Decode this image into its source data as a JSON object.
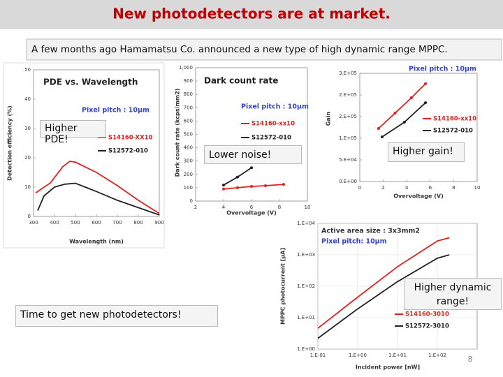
{
  "slide": {
    "title": "New photodetectors are at market.",
    "subtitle": "A few months ago Hamamatsu Co.  announced a new type of high dynamic range MPPC.",
    "callouts": [
      "Higher PDE!",
      "Lower noise!",
      "Higher gain!",
      "Higher dynamic range!"
    ],
    "bottom_note": "Time to get new photodetectors!",
    "page_number": "8"
  },
  "chart_data": [
    {
      "type": "line",
      "title": "PDE vs. Wavelength",
      "annotations": [
        "Pixel pitch : 10μm"
      ],
      "x_label": "Wavelength (nm)",
      "y_label": "Detection efficiency (%)",
      "xlim": [
        300,
        900
      ],
      "xticks": [
        300,
        400,
        500,
        600,
        700,
        800,
        900
      ],
      "ylim": [
        0,
        50
      ],
      "yticks": [
        0,
        10,
        20,
        30,
        40,
        50
      ],
      "markers": false,
      "grid": false,
      "series": [
        {
          "name": "S14160-XX10",
          "color": "#e02020",
          "x": [
            310,
            340,
            380,
            440,
            473,
            500,
            600,
            700,
            800,
            900
          ],
          "values": [
            8,
            9.5,
            11.4,
            17,
            18.8,
            18.5,
            15,
            10.5,
            5.5,
            1
          ]
        },
        {
          "name": "S12572-010",
          "color": "#222222",
          "x": [
            320,
            350,
            400,
            450,
            500,
            600,
            700,
            800,
            900
          ],
          "values": [
            2,
            7,
            10,
            11,
            11.3,
            8.5,
            5.5,
            3,
            0.5
          ]
        }
      ]
    },
    {
      "type": "line",
      "title": "Dark count rate",
      "annotations": [
        "Pixel pitch : 10μm"
      ],
      "x_label": "Overvoltage (V)",
      "y_label": "Dark count rate (kcps/mm2)",
      "xlim": [
        2,
        10
      ],
      "xticks": [
        2,
        4,
        6,
        8,
        10
      ],
      "ylim": [
        0,
        1000
      ],
      "yticks": [
        0,
        100,
        200,
        300,
        400,
        500,
        600,
        700,
        800,
        900,
        {
          "value": 1000,
          "label": "1,000"
        }
      ],
      "markers": true,
      "grid": false,
      "series": [
        {
          "name": "S14160-xx10",
          "color": "#e02020",
          "x": [
            4,
            5,
            6,
            7,
            8.3
          ],
          "values": [
            90,
            100,
            110,
            115,
            125
          ]
        },
        {
          "name": "S12572-010",
          "color": "#222222",
          "x": [
            4,
            5,
            6
          ],
          "values": [
            120,
            180,
            250
          ]
        }
      ]
    },
    {
      "type": "line",
      "annotations": [
        "Pixel pitch : 10μm"
      ],
      "x_label": "Overvoltage (V)",
      "y_label": "Gain",
      "xlim": [
        0,
        10
      ],
      "xticks": [
        0,
        2,
        4,
        6,
        8,
        10
      ],
      "ylim": [
        0,
        250000
      ],
      "yticks": [
        {
          "value": 0,
          "label": "0.E+00"
        },
        {
          "value": 50000,
          "label": "5.E+04"
        },
        {
          "value": 100000,
          "label": "1.E+05"
        },
        {
          "value": 150000,
          "label": "2.E+05"
        },
        {
          "value": 200000,
          "label": "2.E+05"
        },
        {
          "value": 250000,
          "label": "3.E+05"
        }
      ],
      "markers": true,
      "grid": false,
      "series": [
        {
          "name": "S14160-xx10",
          "color": "#e02020",
          "x": [
            1.6,
            3,
            4.4,
            5.6
          ],
          "values": [
            122600,
            158000,
            193500,
            226000
          ]
        },
        {
          "name": "S12572-010",
          "color": "#222222",
          "x": [
            1.9,
            3.8,
            5.6
          ],
          "values": [
            103000,
            137000,
            182000
          ]
        }
      ]
    },
    {
      "type": "line",
      "annotations": [
        "Active area size : 3x3mm2",
        "Pixel pitch: 10μm"
      ],
      "x_label": "Incident power [nW]",
      "y_label": "MPPC photocurrent [μA]",
      "xscale": "log",
      "yscale": "log",
      "xlim": [
        0.1,
        1000
      ],
      "xticks": [
        {
          "value": 0.1,
          "label": "1.E-01"
        },
        {
          "value": 1,
          "label": "1.E+00"
        },
        {
          "value": 10,
          "label": "1.E+01"
        },
        {
          "value": 100,
          "label": "1.E+02"
        }
      ],
      "ylim": [
        1,
        10000
      ],
      "yticks": [
        {
          "value": 1,
          "label": "1.E+00"
        },
        {
          "value": 10,
          "label": "1.E+01"
        },
        {
          "value": 100,
          "label": "1.E+02"
        },
        {
          "value": 1000,
          "label": "1.E+03"
        },
        {
          "value": 10000,
          "label": "1.E+04"
        }
      ],
      "markers": false,
      "grid": true,
      "series": [
        {
          "name": "S14160-3010",
          "color": "#e02020",
          "x": [
            0.1,
            1,
            10,
            100,
            200
          ],
          "values": [
            4.6,
            45,
            420,
            2750,
            3500
          ]
        },
        {
          "name": "S12572-3010",
          "color": "#222222",
          "x": [
            0.1,
            1,
            10,
            100,
            200
          ],
          "values": [
            2.2,
            19,
            140,
            780,
            1000
          ]
        }
      ]
    }
  ]
}
